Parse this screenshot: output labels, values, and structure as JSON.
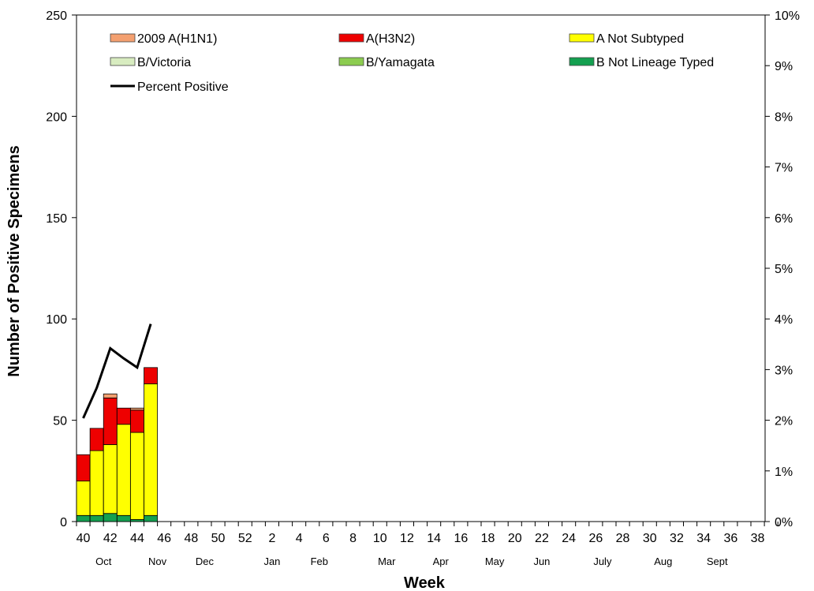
{
  "chart_data": {
    "type": "bar",
    "stacked": true,
    "xlabel": "Week",
    "ylabel": "Number of Positive Specimens",
    "ylim": [
      0,
      250
    ],
    "y_ticks": [
      "0",
      "50",
      "100",
      "150",
      "200",
      "250"
    ],
    "y2lim": [
      0,
      10
    ],
    "y2_ticks": [
      "0%",
      "1%",
      "2%",
      "3%",
      "4%",
      "5%",
      "6%",
      "7%",
      "8%",
      "9%",
      "10%"
    ],
    "week_labels": [
      "40",
      "42",
      "44",
      "46",
      "48",
      "50",
      "52",
      "2",
      "4",
      "6",
      "8",
      "10",
      "12",
      "14",
      "16",
      "18",
      "20",
      "22",
      "24",
      "26",
      "28",
      "30",
      "32",
      "34",
      "36",
      "38"
    ],
    "month_labels": [
      "Oct",
      "Nov",
      "Dec",
      "Jan",
      "Feb",
      "Mar",
      "Apr",
      "May",
      "Jun",
      "July",
      "Aug",
      "Sept"
    ],
    "categories": [
      "40",
      "41",
      "42",
      "43",
      "44",
      "45"
    ],
    "series": [
      {
        "name": "B Not Lineage Typed",
        "color": "#14a050",
        "values": [
          3,
          3,
          4,
          3,
          1,
          3
        ]
      },
      {
        "name": "B/Yamagata",
        "color": "#8ccc50",
        "values": [
          0,
          0,
          0,
          0,
          0,
          0
        ]
      },
      {
        "name": "B/Victoria",
        "color": "#d8ecc0",
        "values": [
          0,
          0,
          0,
          0,
          0,
          0
        ]
      },
      {
        "name": "A Not Subtyped",
        "color": "#ffff00",
        "values": [
          17,
          32,
          34,
          45,
          43,
          65
        ]
      },
      {
        "name": "A(H3N2)",
        "color": "#ee0000",
        "values": [
          13,
          11,
          23,
          8,
          11,
          8
        ]
      },
      {
        "name": "2009 A(H1N1)",
        "color": "#f4a070",
        "values": [
          0,
          0,
          2,
          0,
          1,
          0
        ]
      }
    ],
    "line_series": {
      "name": "Percent Positive",
      "color": "#000000",
      "values": [
        2.04,
        2.64,
        3.42,
        3.22,
        3.04,
        3.9
      ]
    },
    "legend": {
      "placement": "top",
      "entries": [
        {
          "label": "2009 A(H1N1)",
          "color": "#f4a070",
          "kind": "box"
        },
        {
          "label": "A(H3N2)",
          "color": "#ee0000",
          "kind": "box"
        },
        {
          "label": "A Not Subtyped",
          "color": "#ffff00",
          "kind": "box"
        },
        {
          "label": "B/Victoria",
          "color": "#d8ecc0",
          "kind": "box"
        },
        {
          "label": "B/Yamagata",
          "color": "#8ccc50",
          "kind": "box"
        },
        {
          "label": "B Not Lineage Typed",
          "color": "#14a050",
          "kind": "box"
        },
        {
          "label": "Percent Positive",
          "color": "#000000",
          "kind": "line"
        }
      ]
    },
    "grid": false
  }
}
